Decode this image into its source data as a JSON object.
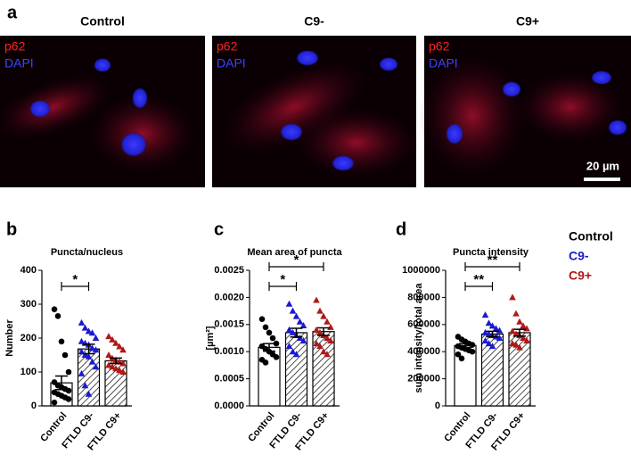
{
  "figure_a": {
    "panel": "a",
    "images": [
      {
        "title": "Control",
        "labels": [
          "p62",
          "DAPI"
        ]
      },
      {
        "title": "C9-",
        "labels": [
          "p62",
          "DAPI"
        ]
      },
      {
        "title": "C9+",
        "labels": [
          "p62",
          "DAPI"
        ]
      }
    ],
    "scale_bar": "20 µm"
  },
  "legend": [
    {
      "name": "Control",
      "color": "#000000"
    },
    {
      "name": "C9-",
      "color": "#1a1ad0"
    },
    {
      "name": "C9+",
      "color": "#b01818"
    }
  ],
  "chart_data": [
    {
      "type": "bar",
      "panel": "b",
      "title": "Puncta/nucleus",
      "ylabel": "Number",
      "categories": [
        "Control",
        "FTLD C9-",
        "FTLD C9+"
      ],
      "values": [
        68,
        168,
        133
      ],
      "errors": [
        20,
        14,
        8
      ],
      "colors": [
        "#000000",
        "#1a1ad0",
        "#b01818"
      ],
      "markers": [
        "circle",
        "triangle",
        "triangle"
      ],
      "hatched": [
        false,
        true,
        true
      ],
      "points": [
        [
          285,
          265,
          190,
          150,
          100,
          70,
          60,
          55,
          50,
          45,
          40,
          35,
          30,
          25,
          20,
          10
        ],
        [
          245,
          230,
          220,
          215,
          200,
          190,
          185,
          180,
          170,
          165,
          160,
          150,
          145,
          130,
          115,
          95,
          60,
          35
        ],
        [
          205,
          195,
          185,
          175,
          165,
          150,
          140,
          135,
          130,
          125,
          120,
          115,
          110,
          105,
          100
        ]
      ],
      "ylim": [
        0,
        400
      ],
      "yticks": [
        0,
        100,
        200,
        300,
        400
      ],
      "significance": [
        {
          "from": 0,
          "to": 1,
          "label": "*"
        }
      ]
    },
    {
      "type": "bar",
      "panel": "c",
      "title": "Mean area of puncta",
      "ylabel": "[µm²]",
      "categories": [
        "Control",
        "FTLD C9-",
        "FTLD C9+"
      ],
      "values": [
        0.00108,
        0.00135,
        0.00137
      ],
      "errors": [
        7e-05,
        8e-05,
        7e-05
      ],
      "colors": [
        "#000000",
        "#1a1ad0",
        "#b01818"
      ],
      "markers": [
        "circle",
        "triangle",
        "triangle"
      ],
      "hatched": [
        false,
        true,
        true
      ],
      "points": [
        [
          0.0016,
          0.00145,
          0.00135,
          0.00125,
          0.00115,
          0.0011,
          0.00105,
          0.001,
          0.00095,
          0.0009,
          0.00085,
          0.0008
        ],
        [
          0.00188,
          0.00175,
          0.00165,
          0.00155,
          0.00148,
          0.0014,
          0.00135,
          0.0013,
          0.00125,
          0.0012,
          0.0011,
          0.001,
          0.00095
        ],
        [
          0.00195,
          0.00175,
          0.00165,
          0.00155,
          0.00145,
          0.0014,
          0.00135,
          0.0013,
          0.00125,
          0.0012,
          0.00115,
          0.0011,
          0.001,
          0.00095
        ]
      ],
      "ylim": [
        0,
        0.0025
      ],
      "yticks": [
        {
          "value": 0,
          "label": "0.0000"
        },
        {
          "value": 0.0005,
          "label": "0.0005"
        },
        {
          "value": 0.001,
          "label": "0.0010"
        },
        {
          "value": 0.0015,
          "label": "0.0015"
        },
        {
          "value": 0.002,
          "label": "0.0020"
        },
        {
          "value": 0.0025,
          "label": "0.0025"
        }
      ],
      "significance": [
        {
          "from": 0,
          "to": 1,
          "label": "*"
        },
        {
          "from": 0,
          "to": 2,
          "label": "*"
        }
      ]
    },
    {
      "type": "bar",
      "panel": "d",
      "title": "Puncta intensity",
      "ylabel": "sum intensity/total area",
      "categories": [
        "Control",
        "FTLD C9-",
        "FTLD C9+"
      ],
      "values": [
        445000,
        530000,
        540000
      ],
      "errors": [
        15000,
        20000,
        25000
      ],
      "colors": [
        "#000000",
        "#1a1ad0",
        "#b01818"
      ],
      "markers": [
        "circle",
        "triangle",
        "triangle"
      ],
      "hatched": [
        false,
        true,
        true
      ],
      "points": [
        [
          510000,
          490000,
          475000,
          460000,
          450000,
          440000,
          430000,
          420000,
          410000,
          400000,
          380000,
          350000
        ],
        [
          670000,
          610000,
          590000,
          570000,
          555000,
          540000,
          530000,
          520000,
          510000,
          500000,
          480000,
          460000,
          440000
        ],
        [
          800000,
          680000,
          620000,
          590000,
          570000,
          550000,
          530000,
          520000,
          500000,
          480000,
          460000,
          450000,
          430000
        ]
      ],
      "ylim": [
        0,
        1000000
      ],
      "yticks": [
        0,
        200000,
        400000,
        600000,
        800000,
        1000000
      ],
      "significance": [
        {
          "from": 0,
          "to": 1,
          "label": "**"
        },
        {
          "from": 0,
          "to": 2,
          "label": "**"
        }
      ]
    }
  ]
}
